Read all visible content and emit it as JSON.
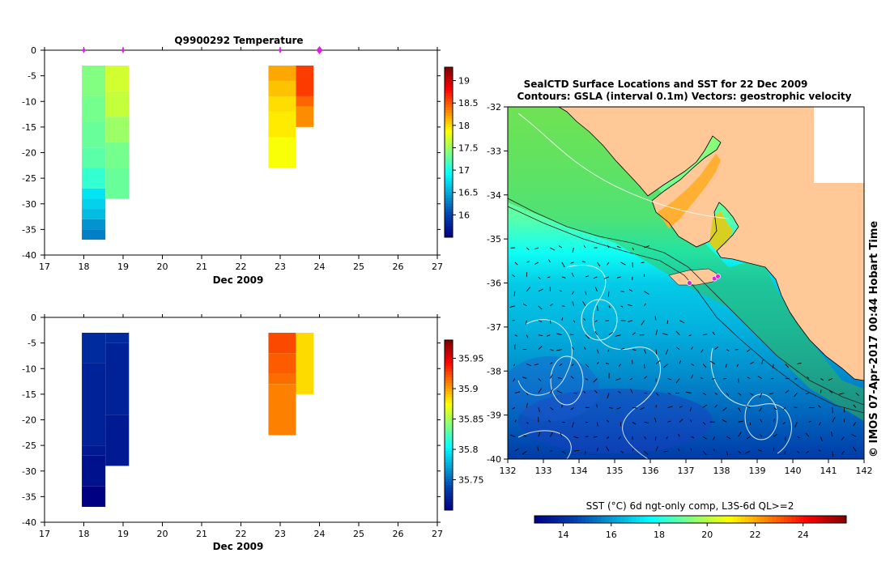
{
  "chart_data": [
    {
      "type": "heatmap",
      "title": "Q9900292  Temperature",
      "xlabel": "Dec 2009",
      "ylabel": "",
      "xlim": [
        17,
        27
      ],
      "ylim": [
        -40,
        0
      ],
      "xticks": [
        "17",
        "18",
        "19",
        "20",
        "21",
        "22",
        "23",
        "24",
        "25",
        "26",
        "27"
      ],
      "yticks": [
        "0",
        "-5",
        "-10",
        "-15",
        "-20",
        "-25",
        "-30",
        "-35",
        "-40"
      ],
      "colorbar": {
        "min": 15.5,
        "max": 19.3,
        "ticks": [
          "16",
          "16.5",
          "17",
          "17.5",
          "18",
          "18.5",
          "19"
        ]
      },
      "surface_markers": [
        18.0,
        19.0,
        23.0,
        24.0
      ],
      "profiles": [
        {
          "x0": 17.95,
          "x1": 18.55,
          "cells": [
            {
              "d0": -3,
              "d1": -5,
              "v": 17.4
            },
            {
              "d0": -5,
              "d1": -9,
              "v": 17.4
            },
            {
              "d0": -9,
              "d1": -14,
              "v": 17.35
            },
            {
              "d0": -14,
              "d1": -19,
              "v": 17.3
            },
            {
              "d0": -19,
              "d1": -23,
              "v": 17.25
            },
            {
              "d0": -23,
              "d1": -27,
              "v": 17.1
            },
            {
              "d0": -27,
              "d1": -29,
              "v": 16.8
            },
            {
              "d0": -29,
              "d1": -31,
              "v": 16.7
            },
            {
              "d0": -31,
              "d1": -33,
              "v": 16.6
            },
            {
              "d0": -33,
              "d1": -35,
              "v": 16.4
            },
            {
              "d0": -35,
              "d1": -37,
              "v": 16.3
            }
          ]
        },
        {
          "x0": 18.55,
          "x1": 19.15,
          "cells": [
            {
              "d0": -3,
              "d1": -8,
              "v": 17.7
            },
            {
              "d0": -8,
              "d1": -13,
              "v": 17.65
            },
            {
              "d0": -13,
              "d1": -18,
              "v": 17.5
            },
            {
              "d0": -18,
              "d1": -23,
              "v": 17.35
            },
            {
              "d0": -23,
              "d1": -29,
              "v": 17.3
            }
          ]
        },
        {
          "x0": 22.7,
          "x1": 23.4,
          "cells": [
            {
              "d0": -3,
              "d1": -6,
              "v": 18.2
            },
            {
              "d0": -6,
              "d1": -9,
              "v": 18.1
            },
            {
              "d0": -9,
              "d1": -12,
              "v": 18.0
            },
            {
              "d0": -12,
              "d1": -17,
              "v": 17.95
            },
            {
              "d0": -17,
              "d1": -23,
              "v": 17.85
            }
          ]
        },
        {
          "x0": 23.4,
          "x1": 23.85,
          "cells": [
            {
              "d0": -3,
              "d1": -9,
              "v": 18.6
            },
            {
              "d0": -9,
              "d1": -11,
              "v": 18.45
            },
            {
              "d0": -11,
              "d1": -15,
              "v": 18.3
            }
          ]
        }
      ]
    },
    {
      "type": "heatmap",
      "title": "",
      "xlabel": "Dec 2009",
      "ylabel": "",
      "xlim": [
        17,
        27
      ],
      "ylim": [
        -40,
        0
      ],
      "xticks": [
        "17",
        "18",
        "19",
        "20",
        "21",
        "22",
        "23",
        "24",
        "25",
        "26",
        "27"
      ],
      "yticks": [
        "0",
        "-5",
        "-10",
        "-15",
        "-20",
        "-25",
        "-30",
        "-35",
        "-40"
      ],
      "colorbar": {
        "min": 35.7,
        "max": 35.98,
        "ticks": [
          "35.75",
          "35.8",
          "35.85",
          "35.9",
          "35.95"
        ]
      },
      "profiles": [
        {
          "x0": 17.95,
          "x1": 18.55,
          "cells": [
            {
              "d0": -3,
              "d1": -9,
              "v": 35.725
            },
            {
              "d0": -9,
              "d1": -25,
              "v": 35.72
            },
            {
              "d0": -25,
              "d1": -27,
              "v": 35.715
            },
            {
              "d0": -27,
              "d1": -33,
              "v": 35.71
            },
            {
              "d0": -33,
              "d1": -37,
              "v": 35.7
            }
          ]
        },
        {
          "x0": 18.55,
          "x1": 19.15,
          "cells": [
            {
              "d0": -3,
              "d1": -5,
              "v": 35.725
            },
            {
              "d0": -5,
              "d1": -19,
              "v": 35.72
            },
            {
              "d0": -19,
              "d1": -29,
              "v": 35.715
            }
          ]
        },
        {
          "x0": 22.7,
          "x1": 23.4,
          "cells": [
            {
              "d0": -3,
              "d1": -7,
              "v": 35.925
            },
            {
              "d0": -7,
              "d1": -11,
              "v": 35.92
            },
            {
              "d0": -11,
              "d1": -13,
              "v": 35.915
            },
            {
              "d0": -13,
              "d1": -23,
              "v": 35.91
            }
          ]
        },
        {
          "x0": 23.4,
          "x1": 23.85,
          "cells": [
            {
              "d0": -3,
              "d1": -15,
              "v": 35.885
            }
          ]
        }
      ]
    },
    {
      "type": "map",
      "title": "SealCTD Surface Locations and SST for 22 Dec 2009",
      "subtitle": "Contours: GSLA (interval 0.1m) Vectors: geostrophic velocity",
      "xlim": [
        132,
        142
      ],
      "ylim": [
        -40,
        -32
      ],
      "xticks": [
        "132",
        "133",
        "134",
        "135",
        "136",
        "137",
        "138",
        "139",
        "140",
        "141",
        "142"
      ],
      "yticks": [
        "-32",
        "-33",
        "-34",
        "-35",
        "-36",
        "-37",
        "-38",
        "-39",
        "-40"
      ],
      "colorbar_label": "SST (°C) 6d ngt-only comp, L3S-6d QL>=2",
      "colorbar": {
        "min": 12.8,
        "max": 25.8,
        "ticks": [
          "14",
          "16",
          "18",
          "20",
          "22",
          "24"
        ]
      },
      "sst_gradient_by_latitude": [
        {
          "lat": -32.0,
          "sst": 19.6
        },
        {
          "lat": -33.5,
          "sst": 19.2
        },
        {
          "lat": -34.5,
          "sst": 18.8
        },
        {
          "lat": -35.3,
          "sst": 17.8
        },
        {
          "lat": -36.0,
          "sst": 16.8
        },
        {
          "lat": -37.0,
          "sst": 16.4
        },
        {
          "lat": -38.0,
          "sst": 15.8
        },
        {
          "lat": -39.0,
          "sst": 15.1
        },
        {
          "lat": -40.0,
          "sst": 14.4
        }
      ],
      "seal_locations": [
        {
          "lon": 137.8,
          "lat": -35.9
        },
        {
          "lon": 137.9,
          "lat": -35.85
        },
        {
          "lon": 137.1,
          "lat": -36.0
        }
      ],
      "credit": "© IMOS 07-Apr-2017 00:44 Hobart Time"
    }
  ]
}
